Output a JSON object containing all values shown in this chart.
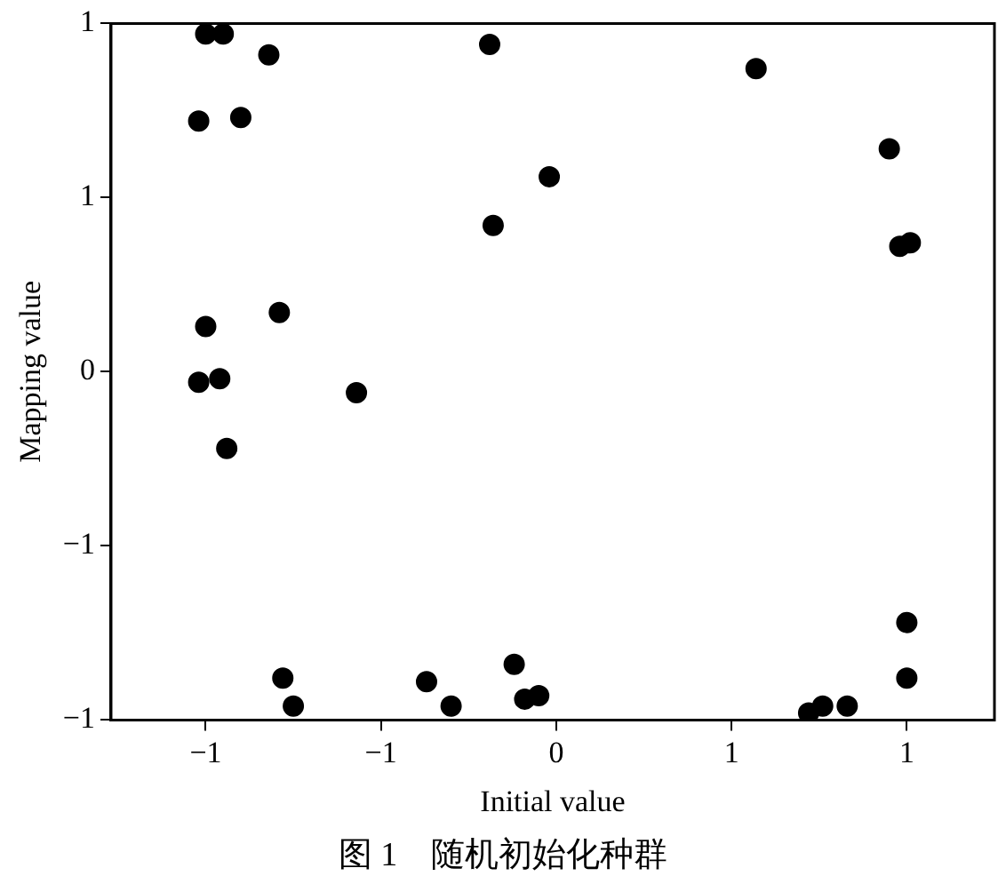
{
  "chart_data": {
    "type": "scatter",
    "xlabel": "Initial value",
    "ylabel": "Mapping value",
    "annotations": [
      "图 1　随机初始化种群"
    ],
    "xlim": [
      -1.27,
      1.25
    ],
    "ylim": [
      -1,
      1
    ],
    "xticks": [
      {
        "value": -1,
        "label": "−1"
      },
      {
        "value": -0.5,
        "label": "−1"
      },
      0,
      {
        "value": 0.5,
        "label": "1"
      },
      1
    ],
    "yticks": [
      {
        "value": -1,
        "label": "−1"
      },
      {
        "value": -0.5,
        "label": "−1"
      },
      0,
      {
        "value": 0.5,
        "label": "1"
      },
      1
    ],
    "grid": false,
    "legend": false,
    "marker": "circle",
    "series": [
      {
        "color": "#000000",
        "x": [
          -1.0,
          -0.95,
          -0.82,
          -1.02,
          -0.9,
          -0.19,
          0.57,
          0.95,
          -0.02,
          -0.18,
          0.98,
          1.01,
          -1.0,
          -0.79,
          -1.02,
          -0.96,
          -0.94,
          -0.57,
          -0.78,
          -0.75,
          -0.37,
          -0.3,
          -0.12,
          -0.09,
          -0.05,
          0.72,
          0.76,
          0.83,
          1.0,
          1.0
        ],
        "values": [
          0.97,
          0.97,
          0.91,
          0.72,
          0.73,
          0.94,
          0.87,
          0.64,
          0.56,
          0.42,
          0.36,
          0.37,
          0.13,
          0.17,
          -0.03,
          -0.02,
          -0.22,
          -0.06,
          -0.88,
          -0.96,
          -0.89,
          -0.96,
          -0.84,
          -0.94,
          -0.93,
          -0.98,
          -0.96,
          -0.96,
          -0.72,
          -0.88
        ]
      }
    ]
  }
}
